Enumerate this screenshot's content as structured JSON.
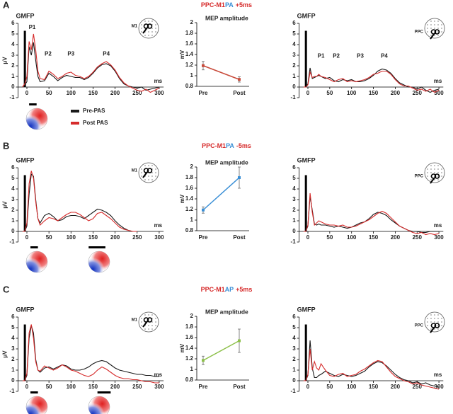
{
  "panels": [
    {
      "label": "A",
      "title": [
        {
          "text": "PPC-M1",
          "color": "#d62b2b"
        },
        {
          "text": "PA",
          "color": "#3a8fd6"
        },
        {
          "text": "+5ms",
          "color": "#d62b2b"
        }
      ]
    },
    {
      "label": "B",
      "title": [
        {
          "text": "PPC-M1",
          "color": "#d62b2b"
        },
        {
          "text": "PA",
          "color": "#3a8fd6"
        },
        {
          "text": "-5ms",
          "color": "#d62b2b"
        }
      ]
    },
    {
      "label": "C",
      "title": [
        {
          "text": "PPC-M1",
          "color": "#d62b2b"
        },
        {
          "text": "AP",
          "color": "#3a8fd6"
        },
        {
          "text": "+5ms",
          "color": "#d62b2b"
        }
      ]
    }
  ],
  "chart_data": [
    {
      "type": "line",
      "title": "GMFP",
      "ylabel": "μV",
      "xlabel": "ms",
      "head_label": "M1",
      "annotations": [
        "P1",
        "P2",
        "P3",
        "P4"
      ],
      "legend": "below",
      "xlim": [
        -20,
        310
      ],
      "ylim": [
        -1,
        6
      ],
      "xticks": [
        0,
        50,
        100,
        150,
        200,
        250,
        300
      ],
      "yticks": [
        -1,
        0,
        1,
        2,
        3,
        4,
        5,
        6
      ],
      "x": [
        -10,
        -5,
        0,
        5,
        10,
        15,
        20,
        25,
        30,
        40,
        50,
        60,
        70,
        80,
        90,
        100,
        110,
        120,
        130,
        140,
        150,
        160,
        170,
        180,
        190,
        200,
        210,
        220,
        230,
        240,
        250,
        260,
        270,
        280,
        290,
        300
      ],
      "series": [
        {
          "name": "Pre-PAS",
          "color": "#1a1a1a",
          "values": [
            0,
            0.2,
            0.5,
            3.8,
            3.0,
            4.2,
            2.5,
            1.0,
            0.5,
            0.6,
            1.3,
            1.0,
            0.6,
            0.9,
            1.1,
            1.0,
            0.9,
            0.9,
            0.7,
            0.9,
            1.3,
            1.8,
            2.1,
            2.2,
            2.0,
            1.5,
            0.8,
            0.3,
            0.1,
            0.0,
            -0.1,
            0.0,
            -0.3,
            -0.2,
            -0.1,
            0
          ]
        },
        {
          "name": "Post PAS",
          "color": "#d62b2b",
          "values": [
            0,
            0.3,
            1.0,
            4.3,
            3.5,
            5.0,
            3.5,
            1.5,
            0.8,
            0.7,
            1.5,
            1.2,
            0.8,
            1.0,
            1.3,
            1.4,
            1.1,
            1.0,
            0.8,
            1.0,
            1.4,
            1.9,
            2.2,
            2.4,
            2.1,
            1.6,
            0.9,
            0.4,
            0.1,
            -0.1,
            -0.3,
            -0.4,
            -0.2,
            -0.5,
            -0.3,
            -0.1
          ]
        }
      ]
    },
    {
      "type": "errorbar-line",
      "title": "MEP amplitude",
      "ylabel": "mV",
      "categories": [
        "Pre",
        "Post"
      ],
      "values": [
        1.19,
        0.93
      ],
      "errors": [
        0.08,
        0.05
      ],
      "color": "#c84a3a",
      "ylim": [
        0.8,
        2
      ],
      "yticks": [
        0.8,
        1,
        1.2,
        1.4,
        1.6,
        1.8,
        2
      ]
    },
    {
      "type": "line",
      "title": "GMFP",
      "xlabel": "ms",
      "head_label": "PPC",
      "annotations": [
        "P1",
        "P2",
        "P3",
        "P4"
      ],
      "xlim": [
        -20,
        310
      ],
      "ylim": [
        -1,
        6
      ],
      "xticks": [
        0,
        50,
        100,
        150,
        200,
        250,
        300
      ],
      "yticks": [
        -1,
        0,
        1,
        2,
        3,
        4,
        5,
        6
      ],
      "x": [
        -10,
        -5,
        0,
        5,
        10,
        15,
        20,
        25,
        30,
        40,
        50,
        60,
        70,
        80,
        90,
        100,
        110,
        120,
        130,
        140,
        150,
        160,
        170,
        180,
        190,
        200,
        210,
        220,
        230,
        240,
        250,
        260,
        270,
        280,
        290,
        300
      ],
      "series": [
        {
          "color": "#1a1a1a",
          "values": [
            0,
            0,
            0.3,
            1.8,
            0.8,
            0.9,
            1.0,
            1.1,
            1.0,
            0.8,
            0.9,
            0.6,
            0.5,
            0.7,
            0.6,
            0.7,
            0.5,
            0.5,
            0.6,
            0.8,
            1.1,
            1.5,
            1.7,
            1.6,
            1.3,
            0.8,
            0.4,
            0.2,
            0.0,
            0.0,
            -0.2,
            0.0,
            -0.3,
            -0.5,
            -0.3,
            -0.2
          ]
        },
        {
          "color": "#d62b2b",
          "values": [
            0,
            0,
            0.2,
            1.4,
            0.9,
            1.0,
            1.0,
            1.2,
            1.0,
            0.9,
            0.7,
            0.5,
            0.7,
            0.8,
            0.5,
            0.6,
            0.5,
            0.6,
            0.7,
            0.9,
            1.2,
            1.3,
            1.5,
            1.5,
            1.2,
            0.7,
            0.3,
            0.1,
            0.1,
            -0.1,
            -0.3,
            -0.2,
            -0.4,
            -0.2,
            -0.5,
            -0.3
          ]
        }
      ]
    },
    {
      "type": "line",
      "title": "GMFP",
      "ylabel": "μV",
      "xlabel": "ms",
      "head_label": "M1",
      "xlim": [
        -20,
        310
      ],
      "ylim": [
        -1,
        6
      ],
      "xticks": [
        0,
        50,
        100,
        150,
        200,
        250,
        300
      ],
      "yticks": [
        -1,
        0,
        1,
        2,
        3,
        4,
        5,
        6
      ],
      "x": [
        -10,
        -5,
        0,
        5,
        10,
        15,
        20,
        25,
        30,
        40,
        50,
        60,
        70,
        80,
        90,
        100,
        110,
        120,
        130,
        140,
        150,
        160,
        170,
        180,
        190,
        200,
        210,
        220,
        230,
        240,
        250,
        260,
        270,
        280,
        290,
        300
      ],
      "series": [
        {
          "color": "#1a1a1a",
          "values": [
            0,
            0,
            0.5,
            3.5,
            5.4,
            5.2,
            3.0,
            1.2,
            0.8,
            1.5,
            1.7,
            1.4,
            1.0,
            1.1,
            1.4,
            1.5,
            1.5,
            1.4,
            1.2,
            1.5,
            1.8,
            2.1,
            2.0,
            1.8,
            1.5,
            1.0,
            0.6,
            0.3,
            0.1,
            0.0,
            0.0,
            null,
            null,
            null,
            null,
            null
          ]
        },
        {
          "color": "#d62b2b",
          "values": [
            0,
            0,
            0.8,
            4.5,
            5.7,
            5.0,
            2.8,
            1.2,
            0.6,
            1.0,
            1.3,
            1.2,
            1.0,
            1.3,
            1.6,
            1.8,
            1.8,
            1.6,
            1.3,
            1.0,
            1.2,
            1.7,
            1.8,
            1.5,
            1.2,
            0.8,
            0.4,
            0.2,
            0.1,
            0.0,
            0.0,
            null,
            null,
            null,
            null,
            null
          ]
        }
      ]
    },
    {
      "type": "errorbar-line",
      "title": "MEP amplitude",
      "ylabel": "mV",
      "categories": [
        "Pre",
        "Post"
      ],
      "values": [
        1.19,
        1.8
      ],
      "errors": [
        0.06,
        0.2
      ],
      "color": "#3a8fd6",
      "ylim": [
        0.8,
        2
      ],
      "yticks": [
        0.8,
        1,
        1.2,
        1.4,
        1.6,
        1.8,
        2
      ]
    },
    {
      "type": "line",
      "title": "GMFP",
      "xlabel": "ms",
      "head_label": "PPC",
      "xlim": [
        -20,
        310
      ],
      "ylim": [
        -1,
        6
      ],
      "xticks": [
        0,
        50,
        100,
        150,
        200,
        250,
        300
      ],
      "yticks": [
        -1,
        0,
        1,
        2,
        3,
        4,
        5,
        6
      ],
      "x": [
        -10,
        -5,
        0,
        5,
        10,
        15,
        20,
        25,
        30,
        40,
        50,
        60,
        70,
        80,
        90,
        100,
        110,
        120,
        130,
        140,
        150,
        160,
        170,
        180,
        190,
        200,
        210,
        220,
        230,
        240,
        250,
        260,
        270,
        280,
        290,
        300
      ],
      "series": [
        {
          "color": "#1a1a1a",
          "values": [
            0,
            0,
            0.5,
            3.3,
            2.0,
            0.7,
            0.6,
            0.7,
            0.6,
            0.6,
            0.5,
            0.4,
            0.5,
            0.4,
            0.3,
            0.4,
            0.6,
            0.8,
            0.9,
            1.2,
            1.6,
            1.8,
            1.7,
            1.5,
            1.1,
            0.8,
            0.5,
            0.3,
            0.1,
            0.0,
            0.0,
            -0.1,
            -0.1,
            0.0,
            0.0,
            0.0
          ]
        },
        {
          "color": "#d62b2b",
          "values": [
            0,
            0,
            0.6,
            3.6,
            1.8,
            0.6,
            0.8,
            1.0,
            0.9,
            0.7,
            0.6,
            0.6,
            0.5,
            0.6,
            0.4,
            0.4,
            0.5,
            0.7,
            0.9,
            1.1,
            1.4,
            1.7,
            1.9,
            1.7,
            1.3,
            0.9,
            0.5,
            0.3,
            0.1,
            -0.1,
            -0.2,
            -0.1,
            -0.3,
            -0.2,
            -0.3,
            -0.2
          ]
        }
      ]
    },
    {
      "type": "line",
      "title": "GMFP",
      "ylabel": "μV",
      "xlabel": "ms",
      "head_label": "M1",
      "xlim": [
        -20,
        310
      ],
      "ylim": [
        -1,
        6
      ],
      "xticks": [
        0,
        50,
        100,
        150,
        200,
        250,
        300
      ],
      "yticks": [
        -1,
        0,
        1,
        2,
        3,
        4,
        5,
        6
      ],
      "x": [
        -10,
        -5,
        0,
        5,
        10,
        15,
        20,
        25,
        30,
        40,
        50,
        60,
        70,
        80,
        90,
        100,
        110,
        120,
        130,
        140,
        150,
        160,
        170,
        180,
        190,
        200,
        210,
        220,
        230,
        240,
        250,
        260,
        270,
        280,
        290,
        300
      ],
      "series": [
        {
          "color": "#1a1a1a",
          "values": [
            0,
            0,
            0.5,
            4.0,
            5.2,
            4.5,
            2.0,
            1.0,
            0.8,
            1.2,
            1.3,
            1.1,
            1.3,
            1.5,
            1.4,
            1.1,
            1.0,
            1.0,
            1.1,
            1.3,
            1.6,
            1.8,
            1.9,
            1.8,
            1.5,
            1.2,
            1.0,
            0.9,
            0.8,
            0.7,
            0.6,
            0.6,
            0.5,
            0.5,
            0.4,
            0.4
          ]
        },
        {
          "color": "#d62b2b",
          "values": [
            0,
            0,
            0.7,
            4.5,
            5.3,
            4.0,
            1.8,
            1.0,
            0.9,
            1.4,
            1.2,
            1.0,
            1.2,
            1.5,
            1.3,
            1.0,
            0.9,
            0.7,
            0.5,
            0.4,
            0.6,
            1.0,
            1.3,
            1.1,
            0.8,
            0.5,
            0.3,
            0.2,
            0.2,
            0.1,
            0.1,
            0.0,
            -0.1,
            -0.1,
            -0.2,
            -0.2
          ]
        }
      ]
    },
    {
      "type": "errorbar-line",
      "title": "MEP amplitude",
      "ylabel": "mV",
      "categories": [
        "Pre",
        "Post"
      ],
      "values": [
        1.17,
        1.54
      ],
      "errors": [
        0.08,
        0.22
      ],
      "color": "#8dc04a",
      "ylim": [
        0.8,
        2
      ],
      "yticks": [
        0.8,
        1,
        1.2,
        1.4,
        1.6,
        1.8,
        2
      ]
    },
    {
      "type": "line",
      "title": "GMFP",
      "xlabel": "ms",
      "head_label": "PPC",
      "xlim": [
        -20,
        310
      ],
      "ylim": [
        -1,
        6
      ],
      "xticks": [
        0,
        50,
        100,
        150,
        200,
        250,
        300
      ],
      "yticks": [
        -1,
        0,
        1,
        2,
        3,
        4,
        5,
        6
      ],
      "x": [
        -10,
        -5,
        0,
        5,
        10,
        15,
        20,
        25,
        30,
        40,
        50,
        60,
        70,
        80,
        90,
        100,
        110,
        120,
        130,
        140,
        150,
        160,
        170,
        180,
        190,
        200,
        210,
        220,
        230,
        240,
        250,
        260,
        270,
        280,
        290,
        300
      ],
      "series": [
        {
          "color": "#1a1a1a",
          "values": [
            0,
            0,
            0.5,
            3.8,
            1.2,
            0.3,
            0.3,
            0.5,
            0.6,
            0.9,
            0.7,
            0.5,
            0.4,
            0.6,
            0.5,
            0.4,
            0.5,
            0.7,
            0.9,
            1.3,
            1.6,
            1.8,
            1.7,
            1.4,
            1.0,
            0.6,
            0.3,
            0.1,
            0.0,
            -0.2,
            -0.1,
            -0.3,
            -0.2,
            -0.4,
            -0.5,
            -0.6
          ]
        },
        {
          "color": "#d62b2b",
          "values": [
            0,
            0,
            0.6,
            3.0,
            1.0,
            1.8,
            1.2,
            1.0,
            1.6,
            1.0,
            0.5,
            0.4,
            0.6,
            0.7,
            0.4,
            0.5,
            0.6,
            0.9,
            1.1,
            1.4,
            1.7,
            1.9,
            1.8,
            1.3,
            0.8,
            0.4,
            0.2,
            0.0,
            -0.1,
            -0.3,
            -0.2,
            -0.4,
            -0.5,
            -0.6,
            -0.7,
            -0.8
          ]
        }
      ]
    }
  ]
}
